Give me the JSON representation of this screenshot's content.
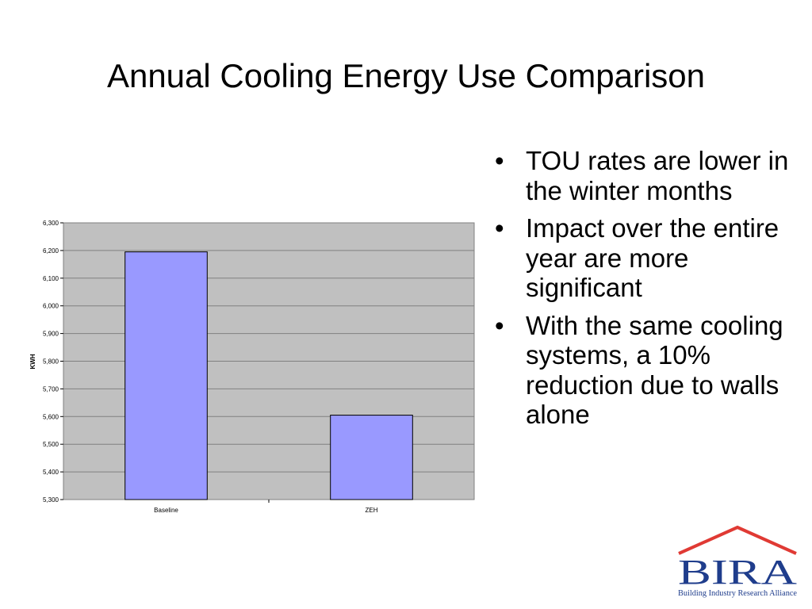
{
  "slide": {
    "title": "Annual Cooling Energy Use Comparison",
    "bullets": [
      "TOU rates are lower in the winter months",
      "Impact over the entire year are more significant",
      "With the same cooling systems, a 10% reduction due to walls alone"
    ]
  },
  "logo": {
    "name": "BIRA",
    "tagline": "Building Industry Research Alliance",
    "colors": {
      "roof": "#e03a34",
      "text": "#1f3d8c",
      "tagline": "#1f3d8c"
    }
  },
  "chart_data": {
    "type": "bar",
    "categories": [
      "Baseline",
      "ZEH"
    ],
    "values": [
      6195,
      5605
    ],
    "ylabel": "KWH",
    "xlabel": "",
    "ylim": [
      5300,
      6300
    ],
    "yticks": [
      5300,
      5400,
      5500,
      5600,
      5700,
      5800,
      5900,
      6000,
      6100,
      6200,
      6300
    ],
    "grid": true,
    "legend": "none",
    "colors": {
      "bar": "#9999ff",
      "plot_bg": "#c0c0c0",
      "grid": "#808080",
      "bar_border": "#000000"
    }
  }
}
